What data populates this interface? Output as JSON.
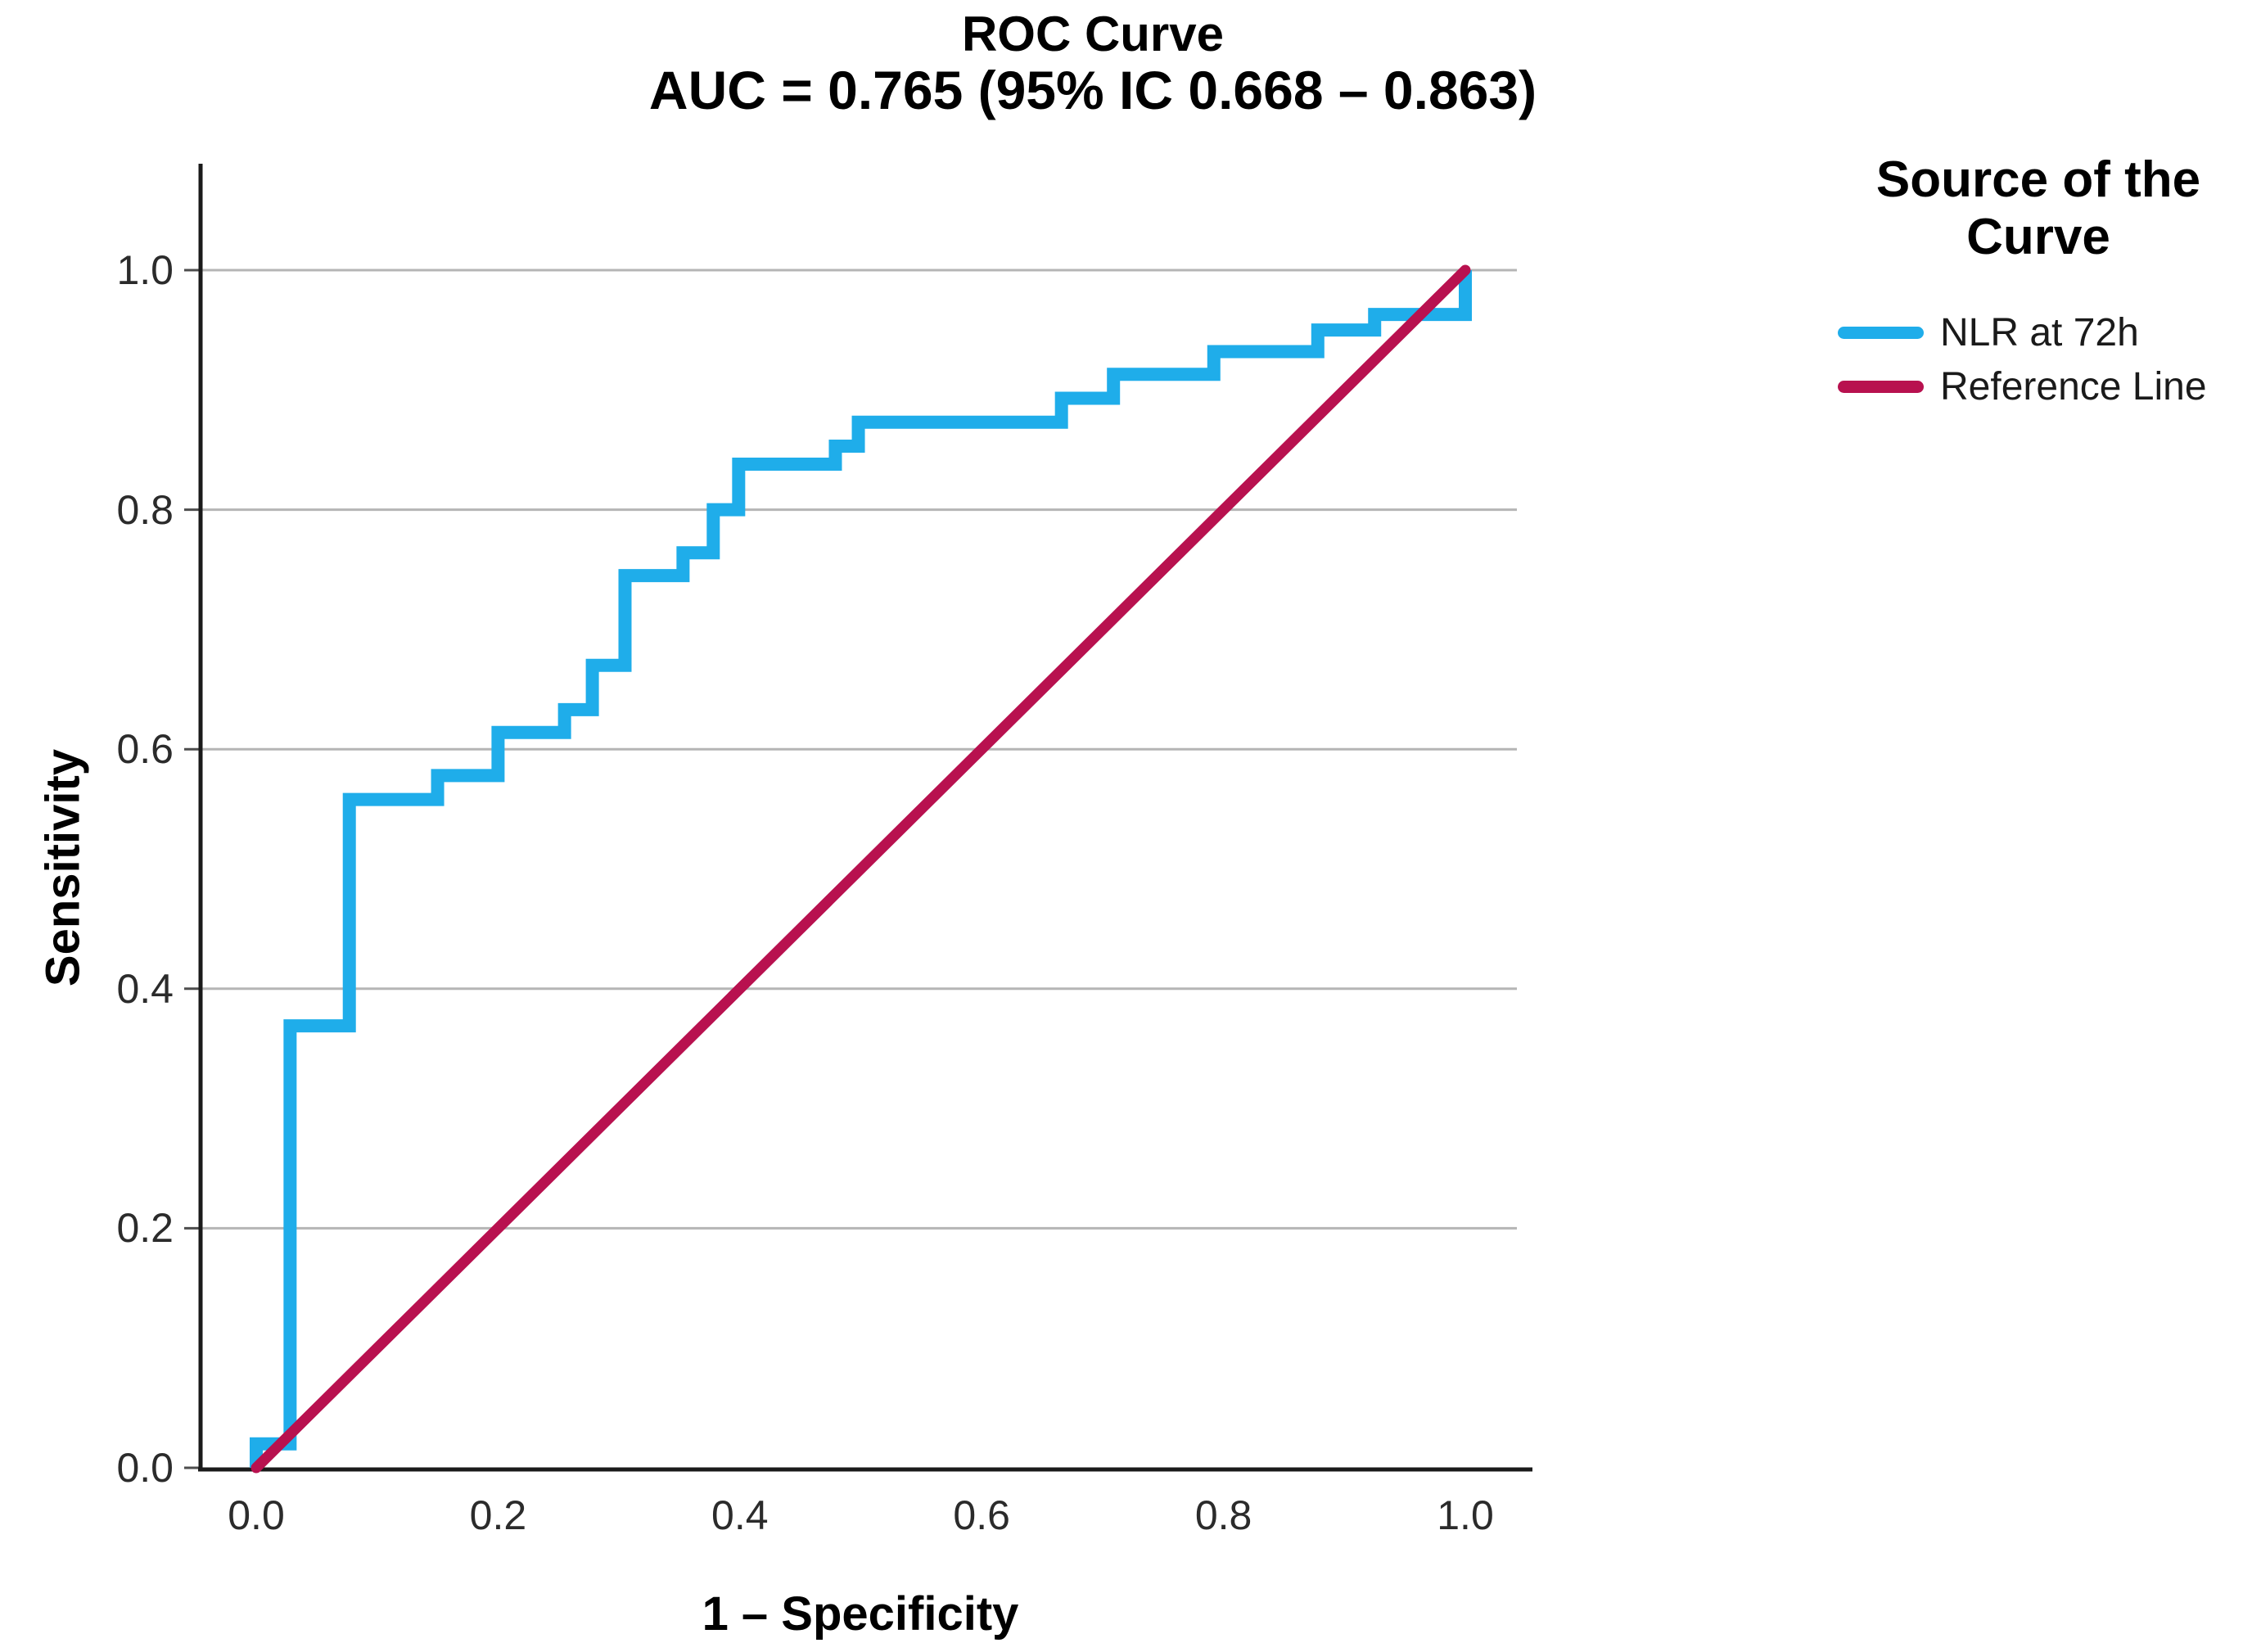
{
  "chart_data": {
    "type": "line",
    "subtype": "roc-step",
    "title": "ROC Curve",
    "subtitle": "AUC = 0.765 (95% IC 0.668 – 0.863)",
    "xlabel": "1 – Specificity",
    "ylabel": "Sensitivity",
    "xlim": [
      0,
      1
    ],
    "ylim": [
      0,
      1
    ],
    "xticks": [
      0.0,
      0.2,
      0.4,
      0.6,
      0.8,
      1.0
    ],
    "yticks": [
      0.0,
      0.2,
      0.4,
      0.6,
      0.8,
      1.0
    ],
    "xtick_labels": [
      "0.0",
      "0.2",
      "0.4",
      "0.6",
      "0.8",
      "1.0"
    ],
    "ytick_labels": [
      "0.0",
      "0.2",
      "0.4",
      "0.6",
      "0.8",
      "1.0"
    ],
    "grid": "horizontal-only",
    "gridline_color": "#b5b5b5",
    "axis_color": "#1a1a1a",
    "legend_title": "Source of the Curve",
    "legend_position": "right-top",
    "series": [
      {
        "name": "NLR at 72h",
        "color": "#1FADEA",
        "line_width": 16,
        "style": "step",
        "points": [
          [
            0.0,
            0.0
          ],
          [
            0.0,
            0.02
          ],
          [
            0.028,
            0.02
          ],
          [
            0.028,
            0.369
          ],
          [
            0.077,
            0.369
          ],
          [
            0.077,
            0.558
          ],
          [
            0.15,
            0.558
          ],
          [
            0.15,
            0.578
          ],
          [
            0.2,
            0.578
          ],
          [
            0.2,
            0.614
          ],
          [
            0.255,
            0.614
          ],
          [
            0.255,
            0.633
          ],
          [
            0.278,
            0.633
          ],
          [
            0.278,
            0.67
          ],
          [
            0.305,
            0.67
          ],
          [
            0.305,
            0.745
          ],
          [
            0.353,
            0.745
          ],
          [
            0.353,
            0.764
          ],
          [
            0.378,
            0.764
          ],
          [
            0.378,
            0.8
          ],
          [
            0.399,
            0.8
          ],
          [
            0.399,
            0.838
          ],
          [
            0.479,
            0.838
          ],
          [
            0.479,
            0.853
          ],
          [
            0.498,
            0.853
          ],
          [
            0.498,
            0.873
          ],
          [
            0.666,
            0.873
          ],
          [
            0.666,
            0.893
          ],
          [
            0.709,
            0.893
          ],
          [
            0.709,
            0.913
          ],
          [
            0.792,
            0.913
          ],
          [
            0.792,
            0.932
          ],
          [
            0.878,
            0.932
          ],
          [
            0.878,
            0.95
          ],
          [
            0.925,
            0.95
          ],
          [
            0.925,
            0.963
          ],
          [
            1.0,
            0.963
          ],
          [
            1.0,
            1.0
          ]
        ]
      },
      {
        "name": "Reference Line",
        "color": "#B8114F",
        "line_width": 13,
        "style": "straight",
        "points": [
          [
            0,
            0
          ],
          [
            1,
            1
          ]
        ]
      }
    ]
  }
}
